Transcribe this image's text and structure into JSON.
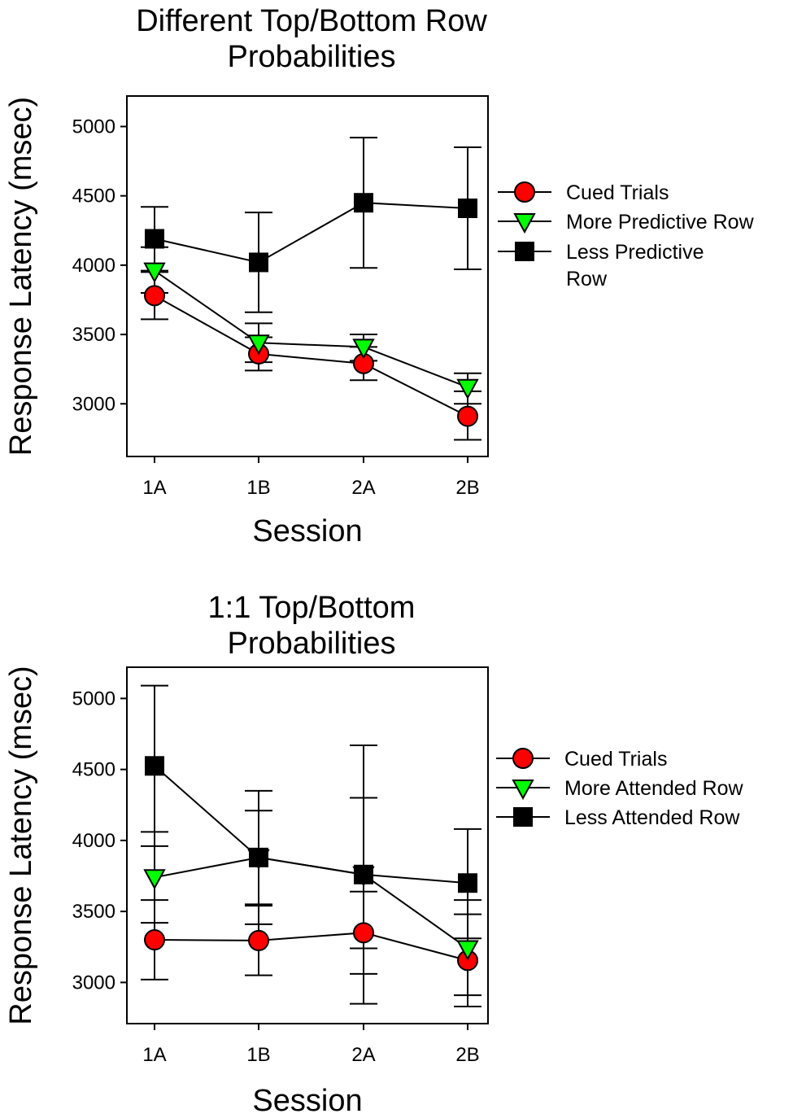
{
  "chart_data": [
    {
      "type": "line",
      "title_lines": [
        "Different Top/Bottom Row",
        "Probabilities"
      ],
      "xlabel": "Session",
      "ylabel": "Response Latency (msec)",
      "categories": [
        "1A",
        "1B",
        "2A",
        "2B"
      ],
      "ylim": [
        2620,
        5220
      ],
      "yticks": [
        3000,
        3500,
        4000,
        4500,
        5000
      ],
      "grid": false,
      "legend_position": "right",
      "series": [
        {
          "name": "Cued Trials",
          "marker": "circle",
          "color": "#ff0000",
          "values": [
            3780,
            3360,
            3290,
            2910
          ],
          "error_low": [
            3610,
            3240,
            3170,
            2740
          ],
          "error_high": [
            3950,
            3480,
            3410,
            3090
          ],
          "legend_lines": [
            "Cued Trials"
          ]
        },
        {
          "name": "More Predictive Row",
          "marker": "triangle-down",
          "color": "#00ff00",
          "values": [
            3960,
            3440,
            3410,
            3120
          ],
          "error_low": [
            3800,
            3300,
            3310,
            3000
          ],
          "error_high": [
            4130,
            3580,
            3500,
            3220
          ],
          "legend_lines": [
            "More Predictive Row"
          ]
        },
        {
          "name": "Less Predictive Row",
          "marker": "square",
          "color": "#000000",
          "values": [
            4190,
            4020,
            4450,
            4410
          ],
          "error_low": [
            3960,
            3660,
            3980,
            3970
          ],
          "error_high": [
            4420,
            4380,
            4920,
            4850
          ],
          "legend_lines": [
            "Less Predictive",
            "Row"
          ]
        }
      ]
    },
    {
      "type": "line",
      "title_lines": [
        "1:1 Top/Bottom",
        "Probabilities"
      ],
      "xlabel": "Session",
      "ylabel": "Response Latency (msec)",
      "categories": [
        "1A",
        "1B",
        "2A",
        "2B"
      ],
      "ylim": [
        2710,
        5220
      ],
      "yticks": [
        3000,
        3500,
        4000,
        4500,
        5000
      ],
      "grid": false,
      "legend_position": "right",
      "series": [
        {
          "name": "Cued Trials",
          "marker": "circle",
          "color": "#ff0000",
          "values": [
            3300,
            3295,
            3350,
            3155
          ],
          "error_low": [
            3020,
            3050,
            3060,
            2830
          ],
          "error_high": [
            3580,
            3540,
            3640,
            3480
          ],
          "legend_lines": [
            "Cued Trials"
          ]
        },
        {
          "name": "More Attended Row",
          "marker": "triangle-down",
          "color": "#00ff00",
          "values": [
            3740,
            3880,
            3760,
            3240
          ],
          "error_low": [
            3420,
            3550,
            3240,
            2910
          ],
          "error_high": [
            4060,
            4210,
            4300,
            3580
          ],
          "legend_lines": [
            "More Attended Row"
          ]
        },
        {
          "name": "Less Attended Row",
          "marker": "square",
          "color": "#000000",
          "values": [
            4525,
            3880,
            3760,
            3700
          ],
          "error_low": [
            3960,
            3410,
            2850,
            3310
          ],
          "error_high": [
            5090,
            4350,
            4670,
            4080
          ],
          "legend_lines": [
            "Less Attended Row"
          ]
        }
      ]
    }
  ]
}
